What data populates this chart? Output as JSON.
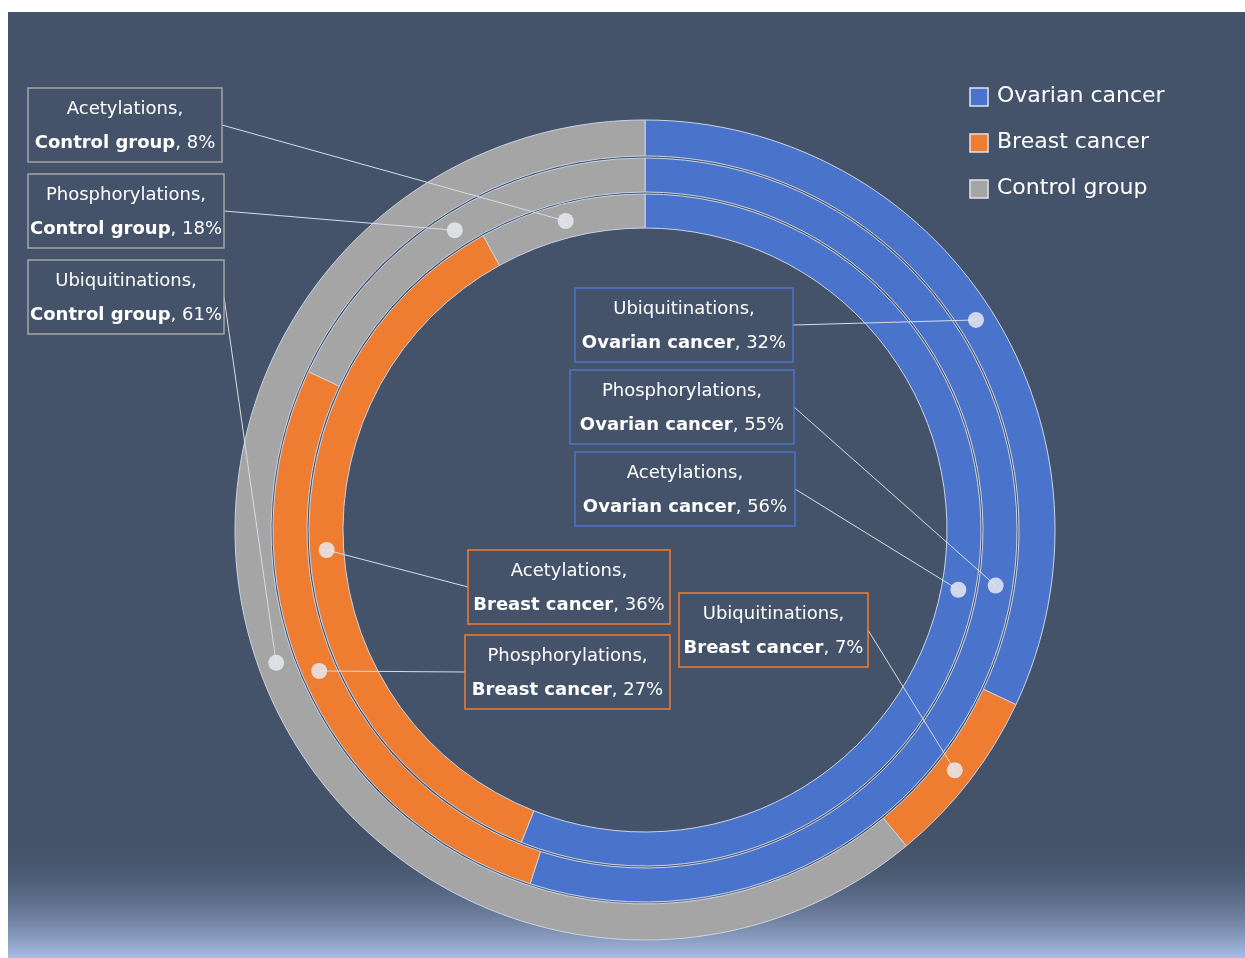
{
  "chart_data": {
    "type": "donut",
    "categories": [
      "Ovarian cancer",
      "Breast cancer",
      "Control group"
    ],
    "colors": [
      "#4a74cc",
      "#ef7d31",
      "#a5a5a5"
    ],
    "series": [
      {
        "values": [
          32,
          7,
          61
        ],
        "value_labels": [
          "Ubiquitinations, Ovarian cancer, 32%",
          "Ubiquitinations, Breast cancer, 7%",
          "Ubiquitinations, Control group, 61%"
        ]
      },
      {
        "values": [
          55,
          27,
          18
        ],
        "value_labels": [
          "Phosphorylations, Ovarian cancer, 55%",
          "Phosphorylations, Breast cancer, 27%",
          "Phosphorylations, Control group, 18%"
        ]
      },
      {
        "values": [
          56,
          36,
          8
        ],
        "value_labels": [
          "Acetylations, Ovarian cancer, 56%",
          "Acetylations, Breast cancer, 36%",
          "Acetylations, Control group, 8%"
        ]
      }
    ],
    "legend": "top right"
  }
}
